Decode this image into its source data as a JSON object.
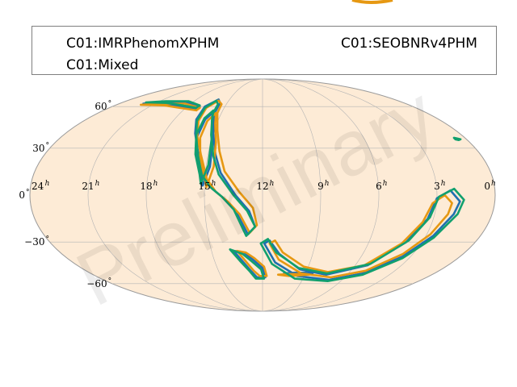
{
  "chart_data": {
    "type": "line",
    "projection": "mollweide",
    "grid": true,
    "background_color": "#fdebd6",
    "legend": {
      "placement": "top",
      "entries": [
        {
          "label": "C01:IMRPhenomXPHM",
          "color": "#1f6fb0"
        },
        {
          "label": "C01:SEOBNRv4PHM",
          "color": "#e69812"
        },
        {
          "label": "C01:Mixed",
          "color": "#11a06e"
        }
      ]
    },
    "ra_ticks": [
      {
        "value": 24,
        "label": "24",
        "unit": "h"
      },
      {
        "value": 21,
        "label": "21",
        "unit": "h"
      },
      {
        "value": 18,
        "label": "18",
        "unit": "h"
      },
      {
        "value": 15,
        "label": "15",
        "unit": "h"
      },
      {
        "value": 12,
        "label": "12",
        "unit": "h"
      },
      {
        "value": 9,
        "label": "9",
        "unit": "h"
      },
      {
        "value": 6,
        "label": "6",
        "unit": "h"
      },
      {
        "value": 3,
        "label": "3",
        "unit": "h"
      },
      {
        "value": 0,
        "label": "0",
        "unit": "h"
      }
    ],
    "dec_ticks": [
      {
        "value": 60,
        "label": "60",
        "unit": "°"
      },
      {
        "value": 30,
        "label": "30",
        "unit": "°"
      },
      {
        "value": 0,
        "label": "0",
        "unit": "°"
      },
      {
        "value": -30,
        "label": "−30",
        "unit": "°"
      },
      {
        "value": -60,
        "label": "−60",
        "unit": "°"
      }
    ],
    "series": [
      {
        "name": "C01:IMRPhenomXPHM",
        "color": "#1f6fb0",
        "contours": [
          [
            [
              12.8,
              -25
            ],
            [
              12.4,
              -20
            ],
            [
              12.7,
              -10
            ],
            [
              13.4,
              0
            ],
            [
              14.2,
              14
            ],
            [
              14.6,
              26
            ],
            [
              15.0,
              40
            ],
            [
              15.5,
              55
            ],
            [
              15.6,
              63
            ],
            [
              16.0,
              66
            ],
            [
              16.6,
              60
            ],
            [
              16.5,
              50
            ],
            [
              16.1,
              40
            ],
            [
              15.6,
              28
            ],
            [
              15.1,
              12
            ],
            [
              14.6,
              4
            ],
            [
              14.0,
              -2
            ],
            [
              13.4,
              -10
            ],
            [
              12.8,
              -25
            ]
          ],
          [
            [
              17.0,
              60
            ],
            [
              17.0,
              58
            ],
            [
              18.5,
              60
            ],
            [
              20,
              62
            ],
            [
              22,
              62.5
            ],
            [
              20.5,
              63.5
            ],
            [
              18.5,
              63.5
            ],
            [
              17.0,
              60
            ]
          ],
          [
            [
              15.1,
              6
            ],
            [
              14.8,
              18
            ],
            [
              14.9,
              35
            ],
            [
              15.3,
              48
            ],
            [
              15.6,
              56
            ],
            [
              15.9,
              50
            ],
            [
              15.9,
              38
            ],
            [
              15.6,
              25
            ],
            [
              15.2,
              12
            ],
            [
              15.1,
              6
            ]
          ],
          [
            [
              11.9,
              -31
            ],
            [
              11.2,
              -44
            ],
            [
              9.5,
              -54
            ],
            [
              7.0,
              -57
            ],
            [
              5.0,
              -52
            ],
            [
              3.5,
              -40
            ],
            [
              2.6,
              -26
            ],
            [
              2.0,
              -12
            ],
            [
              1.8,
              -4
            ],
            [
              2.3,
              3
            ],
            [
              3.0,
              -2
            ],
            [
              3.3,
              -15
            ],
            [
              3.9,
              -30
            ],
            [
              5.2,
              -46
            ],
            [
              7.5,
              -53
            ],
            [
              9.5,
              -49
            ],
            [
              11.0,
              -38
            ],
            [
              11.6,
              -29
            ],
            [
              11.9,
              -31
            ]
          ],
          [
            [
              13.7,
              -36
            ],
            [
              13.2,
              -44
            ],
            [
              12.8,
              -50
            ],
            [
              12.4,
              -55
            ],
            [
              11.8,
              -55
            ],
            [
              12.0,
              -48
            ],
            [
              12.6,
              -42
            ],
            [
              13.1,
              -37
            ],
            [
              13.7,
              -36
            ]
          ],
          [
            [
              10.5,
              -52
            ],
            [
              9.8,
              -53
            ],
            [
              9.0,
              -52.5
            ],
            [
              8.5,
              -52
            ],
            [
              9.0,
              -51.5
            ],
            [
              9.8,
              -51.5
            ],
            [
              10.5,
              -52
            ]
          ]
        ]
      },
      {
        "name": "C01:SEOBNRv4PHM",
        "color": "#e69812",
        "contours": [
          [
            [
              12.7,
              -24
            ],
            [
              12.3,
              -19
            ],
            [
              12.5,
              -8
            ],
            [
              13.2,
              2
            ],
            [
              14.0,
              15
            ],
            [
              14.4,
              28
            ],
            [
              14.8,
              42
            ],
            [
              15.3,
              55
            ],
            [
              15.4,
              62
            ],
            [
              15.9,
              65
            ],
            [
              16.4,
              59
            ],
            [
              16.3,
              49
            ],
            [
              15.9,
              38
            ],
            [
              15.4,
              26
            ],
            [
              14.9,
              10
            ],
            [
              14.4,
              2
            ],
            [
              13.8,
              -4
            ],
            [
              13.2,
              -12
            ],
            [
              12.7,
              -24
            ]
          ],
          [
            [
              16.9,
              59
            ],
            [
              17.0,
              57
            ],
            [
              18.5,
              59
            ],
            [
              20,
              61
            ],
            [
              22,
              61.5
            ],
            [
              20.5,
              62.5
            ],
            [
              18.5,
              62.5
            ],
            [
              16.9,
              59
            ]
          ],
          [
            [
              14.9,
              5
            ],
            [
              14.6,
              18
            ],
            [
              14.7,
              34
            ],
            [
              15.1,
              47
            ],
            [
              15.4,
              55
            ],
            [
              15.7,
              49
            ],
            [
              15.7,
              37
            ],
            [
              15.4,
              24
            ],
            [
              15.0,
              10
            ],
            [
              14.9,
              5
            ]
          ],
          [
            [
              11.6,
              -31
            ],
            [
              11.0,
              -42
            ],
            [
              9.3,
              -52
            ],
            [
              7.0,
              -55
            ],
            [
              5.0,
              -50
            ],
            [
              3.6,
              -38
            ],
            [
              2.8,
              -25
            ],
            [
              2.3,
              -12
            ],
            [
              2.2,
              -5
            ],
            [
              2.6,
              0
            ],
            [
              3.2,
              -5
            ],
            [
              3.5,
              -17
            ],
            [
              4.1,
              -31
            ],
            [
              5.4,
              -46
            ],
            [
              7.5,
              -51
            ],
            [
              9.3,
              -47
            ],
            [
              10.8,
              -37
            ],
            [
              11.3,
              -29
            ],
            [
              11.6,
              -31
            ]
          ],
          [
            [
              13.5,
              -36
            ],
            [
              13.0,
              -44
            ],
            [
              12.6,
              -50
            ],
            [
              12.2,
              -54
            ],
            [
              11.7,
              -54
            ],
            [
              11.9,
              -47
            ],
            [
              12.5,
              -41
            ],
            [
              13.0,
              -37
            ],
            [
              13.5,
              -36
            ]
          ],
          [
            [
              10.9,
              -53
            ],
            [
              10.1,
              -54
            ],
            [
              9.3,
              -53.5
            ],
            [
              8.7,
              -53
            ],
            [
              9.3,
              -52.5
            ],
            [
              10.1,
              -52.5
            ],
            [
              10.9,
              -53
            ]
          ]
        ]
      },
      {
        "name": "C01:Mixed",
        "color": "#11a06e",
        "contours": [
          [
            [
              12.9,
              -26
            ],
            [
              12.4,
              -20
            ],
            [
              12.8,
              -10
            ],
            [
              13.5,
              0
            ],
            [
              14.3,
              13
            ],
            [
              14.7,
              25
            ],
            [
              15.1,
              39
            ],
            [
              15.6,
              54
            ],
            [
              15.7,
              62
            ],
            [
              16.1,
              65
            ],
            [
              16.5,
              59
            ],
            [
              16.4,
              49
            ],
            [
              16.0,
              39
            ],
            [
              15.6,
              27
            ],
            [
              15.2,
              13
            ],
            [
              14.7,
              5
            ],
            [
              14.1,
              -1
            ],
            [
              13.5,
              -9
            ],
            [
              12.9,
              -26
            ]
          ],
          [
            [
              17.1,
              61
            ],
            [
              17.2,
              59
            ],
            [
              18.5,
              61
            ],
            [
              20,
              63
            ],
            [
              22,
              63.5
            ],
            [
              20.5,
              64.5
            ],
            [
              18.5,
              64.5
            ],
            [
              17.1,
              61
            ]
          ],
          [
            [
              15.2,
              7
            ],
            [
              14.9,
              19
            ],
            [
              15.0,
              36
            ],
            [
              15.4,
              49
            ],
            [
              15.7,
              57
            ],
            [
              16.0,
              51
            ],
            [
              16.0,
              39
            ],
            [
              15.7,
              26
            ],
            [
              15.3,
              13
            ],
            [
              15.2,
              7
            ]
          ],
          [
            [
              12.1,
              -31
            ],
            [
              11.4,
              -45
            ],
            [
              9.6,
              -56
            ],
            [
              7.0,
              -58
            ],
            [
              4.9,
              -53
            ],
            [
              3.4,
              -41
            ],
            [
              2.5,
              -27
            ],
            [
              1.8,
              -12
            ],
            [
              1.6,
              -3
            ],
            [
              2.1,
              4
            ],
            [
              2.9,
              -1
            ],
            [
              3.2,
              -14
            ],
            [
              3.8,
              -29
            ],
            [
              5.1,
              -45
            ],
            [
              7.5,
              -52
            ],
            [
              9.6,
              -48
            ],
            [
              11.2,
              -37
            ],
            [
              11.7,
              -28
            ],
            [
              12.1,
              -31
            ]
          ],
          [
            [
              13.9,
              -35
            ],
            [
              13.4,
              -43
            ],
            [
              12.9,
              -50
            ],
            [
              12.5,
              -56
            ],
            [
              11.9,
              -56
            ],
            [
              12.1,
              -49
            ],
            [
              12.7,
              -43
            ],
            [
              13.2,
              -38
            ],
            [
              13.9,
              -35
            ]
          ],
          [
            [
              0.65,
              37
            ],
            [
              0.5,
              36.5
            ],
            [
              0.35,
              36
            ],
            [
              0.5,
              35.5
            ],
            [
              0.65,
              36
            ]
          ]
        ]
      }
    ]
  },
  "watermark": "Preliminary"
}
